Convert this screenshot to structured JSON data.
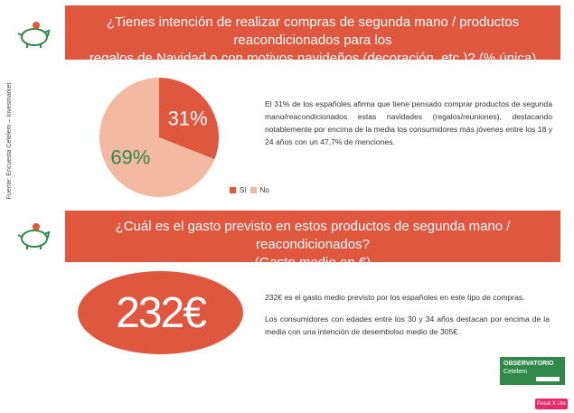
{
  "source_note": "Fuente: Encuesta Cetelem – Invesmarket",
  "section1": {
    "title_line1": "¿Tienes intención de realizar compras de segunda mano / productos reacondicionados para los",
    "title_line2": "regalos de Navidad o con motivos navideños (decoración, etc.)? (% única)",
    "paragraph": "El 31% de los españoles afirma que tiene pensado comprar productos de segunda mano/reacondicionados estas navidades (regalos/reuniones), destacando notablemente por encima de la media los consumidores más jóvenes entre los 18 y 24 años con un 47,7% de menciones."
  },
  "chart_data": {
    "type": "pie",
    "labels": [
      "Sí",
      "No"
    ],
    "values": [
      31,
      69
    ],
    "value_labels": [
      "31%",
      "69%"
    ],
    "colors": [
      "#e0573f",
      "#f4b9a1"
    ],
    "label_colors": [
      "#ffffff",
      "#2f8a4a"
    ],
    "legend_position": "bottom-right"
  },
  "section2": {
    "title_line1": "¿Cuál es el gasto previsto en estos productos de segunda mano / reacondicionados?",
    "title_line2": "(Gasto medio en €)",
    "big_value": "232€",
    "paragraph1": "232€ es el gasto medio previsto por los españoles en este tipo de compras.",
    "paragraph2": "Los consumidores con edades entre los 30 y 34 años destacan por encima de la media con una intención de desembolso medio de 305€."
  },
  "logo": {
    "line1": "OBSERVATORIO",
    "line2": "Cetelem"
  },
  "badge": "Pasal X Ute",
  "colors": {
    "accent": "#e0573f",
    "green": "#2f8a4a",
    "light": "#f4b9a1"
  },
  "icons": [
    "piggy-bank-icon",
    "piggy-bank-icon"
  ]
}
